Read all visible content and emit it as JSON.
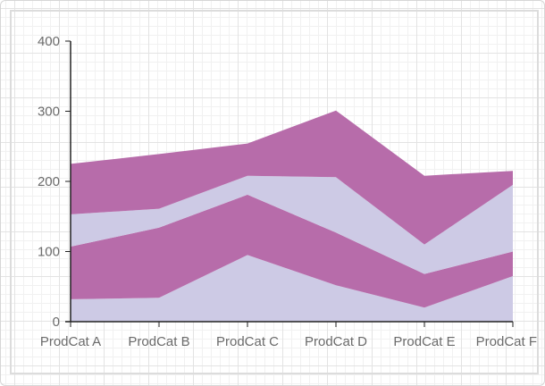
{
  "chart_data": {
    "type": "area",
    "stacked": true,
    "categories": [
      "ProdCat A",
      "ProdCat B",
      "ProdCat C",
      "ProdCat D",
      "ProdCat E",
      "ProdCat F"
    ],
    "series": [
      {
        "values": [
          32,
          34,
          95,
          52,
          20,
          65
        ],
        "color": "#cdcae5"
      },
      {
        "values": [
          75,
          100,
          86,
          75,
          48,
          35
        ],
        "color": "#b76caa"
      },
      {
        "values": [
          46,
          27,
          27,
          79,
          42,
          95
        ],
        "color": "#cdcae5"
      },
      {
        "values": [
          72,
          78,
          46,
          95,
          98,
          20
        ],
        "color": "#b76caa"
      }
    ],
    "ylim": [
      0,
      400
    ],
    "yticks": [
      0,
      100,
      200,
      300,
      400
    ],
    "grid": true,
    "legend": "none",
    "title": "",
    "xlabel": "",
    "ylabel": ""
  }
}
